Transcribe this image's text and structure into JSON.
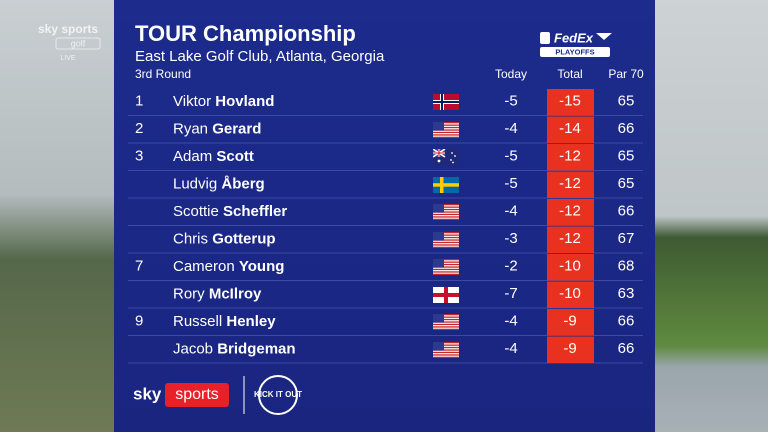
{
  "channel": {
    "brand": "sky sports",
    "sub": "golf",
    "live": "LIVE"
  },
  "header": {
    "title": "TOUR Championship",
    "subtitle": "East Lake Golf Club, Atlanta, Georgia",
    "round": "3rd Round",
    "sponsor": "FedEx",
    "sponsor_sub": "PLAYOFFS"
  },
  "columns": {
    "today": "Today",
    "total": "Total",
    "par": "Par 70"
  },
  "rows": [
    {
      "pos": "1",
      "first": "Viktor",
      "last": "Hovland",
      "today": -5,
      "total": -15,
      "score": 65
    },
    {
      "pos": "2",
      "first": "Ryan",
      "last": "Gerard",
      "today": -4,
      "total": -14,
      "score": 66
    },
    {
      "pos": "3",
      "first": "Adam",
      "last": "Scott",
      "today": -5,
      "total": -12,
      "score": 65
    },
    {
      "pos": null,
      "first": "Ludvig",
      "last": "Åberg",
      "today": -5,
      "total": -12,
      "score": 65
    },
    {
      "pos": null,
      "first": "Scottie",
      "last": "Scheffler",
      "today": -4,
      "total": -12,
      "score": 66
    },
    {
      "pos": null,
      "first": "Chris",
      "last": "Gotterup",
      "today": -3,
      "total": -12,
      "score": 67
    },
    {
      "pos": "7",
      "first": "Cameron",
      "last": "Young",
      "today": -2,
      "total": -10,
      "score": 68
    },
    {
      "pos": null,
      "first": "Rory",
      "last": "McIlroy",
      "today": -7,
      "total": -10,
      "score": 63
    },
    {
      "pos": "9",
      "first": "Russell",
      "last": "Henley",
      "today": -4,
      "total": -9,
      "score": 66
    },
    {
      "pos": null,
      "first": "Jacob",
      "last": "Bridgeman",
      "today": -4,
      "total": -9,
      "score": 66
    }
  ],
  "footer": {
    "sky": "sky",
    "sports": "sports",
    "kick": "KICK IT OUT"
  }
}
